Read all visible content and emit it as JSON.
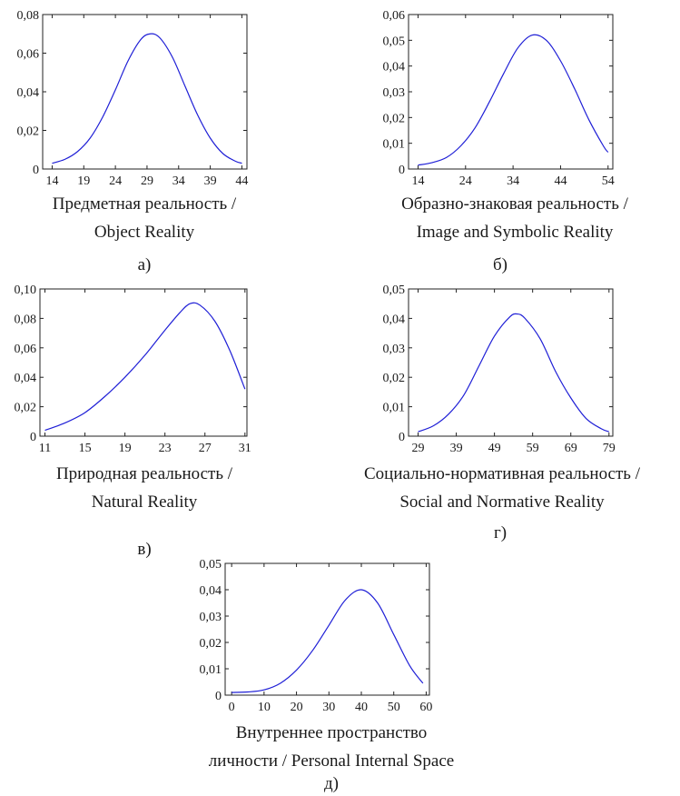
{
  "chart_data": [
    {
      "type": "line",
      "color": "#1f1fd6",
      "xlim": [
        12.5,
        44.8
      ],
      "ylim": [
        0,
        0.08
      ],
      "xticks": [
        14,
        19,
        24,
        29,
        34,
        39,
        44
      ],
      "xtick_labels": [
        "14",
        "19",
        "24",
        "29",
        "34",
        "39",
        "44"
      ],
      "yticks": [
        0,
        0.02,
        0.04,
        0.06,
        0.08
      ],
      "ytick_labels": [
        "0",
        "0,02",
        "0,04",
        "0,06",
        "0,08"
      ],
      "caption": [
        "Предметная реальность /",
        "Object Reality"
      ],
      "label": "а)",
      "series": [
        {
          "x": [
            14,
            16,
            18,
            20,
            22,
            24,
            26,
            28,
            29.5,
            31,
            33,
            35,
            37,
            39,
            41,
            43,
            44
          ],
          "values": [
            0.003,
            0.005,
            0.009,
            0.016,
            0.027,
            0.041,
            0.056,
            0.067,
            0.07,
            0.068,
            0.058,
            0.043,
            0.028,
            0.016,
            0.008,
            0.004,
            0.003
          ]
        }
      ]
    },
    {
      "type": "line",
      "color": "#1f1fd6",
      "xlim": [
        12,
        55
      ],
      "ylim": [
        0,
        0.06
      ],
      "xticks": [
        14,
        24,
        34,
        44,
        54
      ],
      "xtick_labels": [
        "14",
        "24",
        "34",
        "44",
        "54"
      ],
      "yticks": [
        0,
        0.01,
        0.02,
        0.03,
        0.04,
        0.05,
        0.06
      ],
      "ytick_labels": [
        "0",
        "0,01",
        "0,02",
        "0,03",
        "0,04",
        "0,05",
        "0,06"
      ],
      "caption": [
        "Образно-знаковая реальность /",
        "Image and Symbolic Reality"
      ],
      "label": "б)",
      "series": [
        {
          "x": [
            14,
            17,
            20,
            23,
            26,
            29,
            32,
            35,
            38,
            41,
            44,
            47,
            50,
            53,
            54
          ],
          "values": [
            0.0015,
            0.0025,
            0.0045,
            0.009,
            0.016,
            0.026,
            0.037,
            0.047,
            0.052,
            0.05,
            0.042,
            0.031,
            0.019,
            0.009,
            0.0065
          ]
        }
      ]
    },
    {
      "type": "line",
      "color": "#1f1fd6",
      "xlim": [
        10.5,
        31.2
      ],
      "ylim": [
        0,
        0.1
      ],
      "xticks": [
        11,
        15,
        19,
        23,
        27,
        31
      ],
      "xtick_labels": [
        "11",
        "15",
        "19",
        "23",
        "27",
        "31"
      ],
      "yticks": [
        0,
        0.02,
        0.04,
        0.06,
        0.08,
        0.1
      ],
      "ytick_labels": [
        "0",
        "0,02",
        "0,04",
        "0,06",
        "0,08",
        "0,10"
      ],
      "caption": [
        "Природная реальность /",
        "Natural Reality"
      ],
      "label": "в)",
      "series": [
        {
          "x": [
            11,
            13,
            15,
            17,
            19,
            21,
            23,
            24.5,
            25.5,
            26.5,
            28,
            29.5,
            31
          ],
          "values": [
            0.004,
            0.009,
            0.016,
            0.027,
            0.04,
            0.055,
            0.072,
            0.084,
            0.09,
            0.089,
            0.078,
            0.058,
            0.032
          ]
        }
      ]
    },
    {
      "type": "line",
      "color": "#1f1fd6",
      "xlim": [
        26.5,
        80
      ],
      "ylim": [
        0,
        0.05
      ],
      "xticks": [
        29,
        39,
        49,
        59,
        69,
        79
      ],
      "xtick_labels": [
        "29",
        "39",
        "49",
        "59",
        "69",
        "79"
      ],
      "yticks": [
        0,
        0.01,
        0.02,
        0.03,
        0.04,
        0.05
      ],
      "ytick_labels": [
        "0",
        "0,01",
        "0,02",
        "0,03",
        "0,04",
        "0,05"
      ],
      "caption": [
        "Социально-нормативная реальность /",
        "Social and Normative Reality"
      ],
      "label": "г)",
      "series": [
        {
          "x": [
            29,
            33,
            37,
            41,
            45,
            49,
            53,
            55,
            57,
            61,
            65,
            69,
            73,
            77,
            79
          ],
          "values": [
            0.0015,
            0.0035,
            0.0075,
            0.014,
            0.024,
            0.034,
            0.0405,
            0.0415,
            0.04,
            0.033,
            0.022,
            0.013,
            0.006,
            0.0025,
            0.0015
          ]
        }
      ]
    },
    {
      "type": "line",
      "color": "#1f1fd6",
      "xlim": [
        -2,
        61
      ],
      "ylim": [
        0,
        0.05
      ],
      "xticks": [
        0,
        10,
        20,
        30,
        40,
        50,
        60
      ],
      "xtick_labels": [
        "0",
        "10",
        "20",
        "30",
        "40",
        "50",
        "60"
      ],
      "yticks": [
        0,
        0.01,
        0.02,
        0.03,
        0.04,
        0.05
      ],
      "ytick_labels": [
        "0",
        "0,01",
        "0,02",
        "0,03",
        "0,04",
        "0,05"
      ],
      "caption": [
        "Внутреннее пространство",
        "личности / Personal Internal Space"
      ],
      "label": "д)",
      "series": [
        {
          "x": [
            0,
            5,
            10,
            15,
            20,
            25,
            30,
            35,
            40,
            45,
            50,
            55,
            59
          ],
          "values": [
            0.001,
            0.0012,
            0.002,
            0.0045,
            0.0095,
            0.017,
            0.0265,
            0.036,
            0.04,
            0.035,
            0.023,
            0.011,
            0.0045
          ]
        }
      ]
    }
  ]
}
